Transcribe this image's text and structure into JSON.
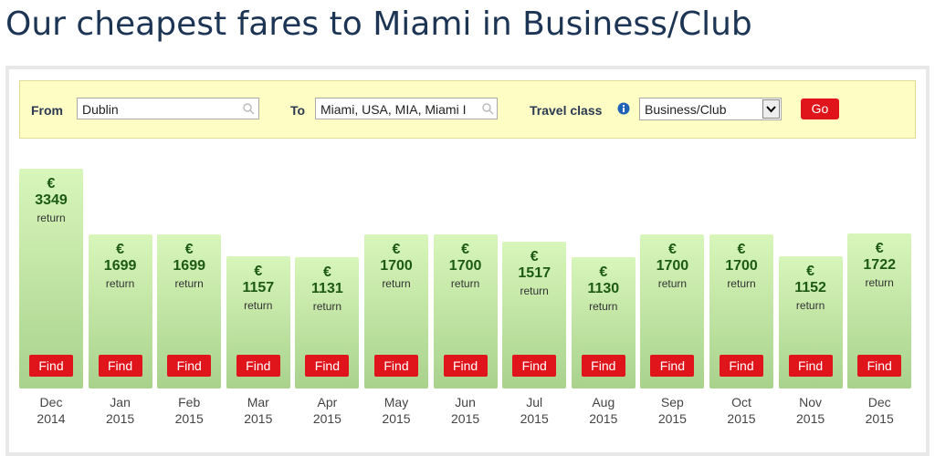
{
  "title": "Our cheapest fares to Miami in Business/Club",
  "form": {
    "from_label": "From",
    "from_value": "Dublin",
    "to_label": "To",
    "to_value": "Miami, USA, MIA, Miami I",
    "class_label": "Travel class",
    "class_value": "Business/Club",
    "go": "Go"
  },
  "fares": {
    "currency": "€",
    "note": "return",
    "button": "Find",
    "months": [
      {
        "month": "Dec",
        "year": "2014",
        "price": 3349
      },
      {
        "month": "Jan",
        "year": "2015",
        "price": 1699
      },
      {
        "month": "Feb",
        "year": "2015",
        "price": 1699
      },
      {
        "month": "Mar",
        "year": "2015",
        "price": 1157
      },
      {
        "month": "Apr",
        "year": "2015",
        "price": 1131
      },
      {
        "month": "May",
        "year": "2015",
        "price": 1700
      },
      {
        "month": "Jun",
        "year": "2015",
        "price": 1700
      },
      {
        "month": "Jul",
        "year": "2015",
        "price": 1517
      },
      {
        "month": "Aug",
        "year": "2015",
        "price": 1130
      },
      {
        "month": "Sep",
        "year": "2015",
        "price": 1700
      },
      {
        "month": "Oct",
        "year": "2015",
        "price": 1700
      },
      {
        "month": "Nov",
        "year": "2015",
        "price": 1152
      },
      {
        "month": "Dec",
        "year": "2015",
        "price": 1722
      }
    ]
  }
}
